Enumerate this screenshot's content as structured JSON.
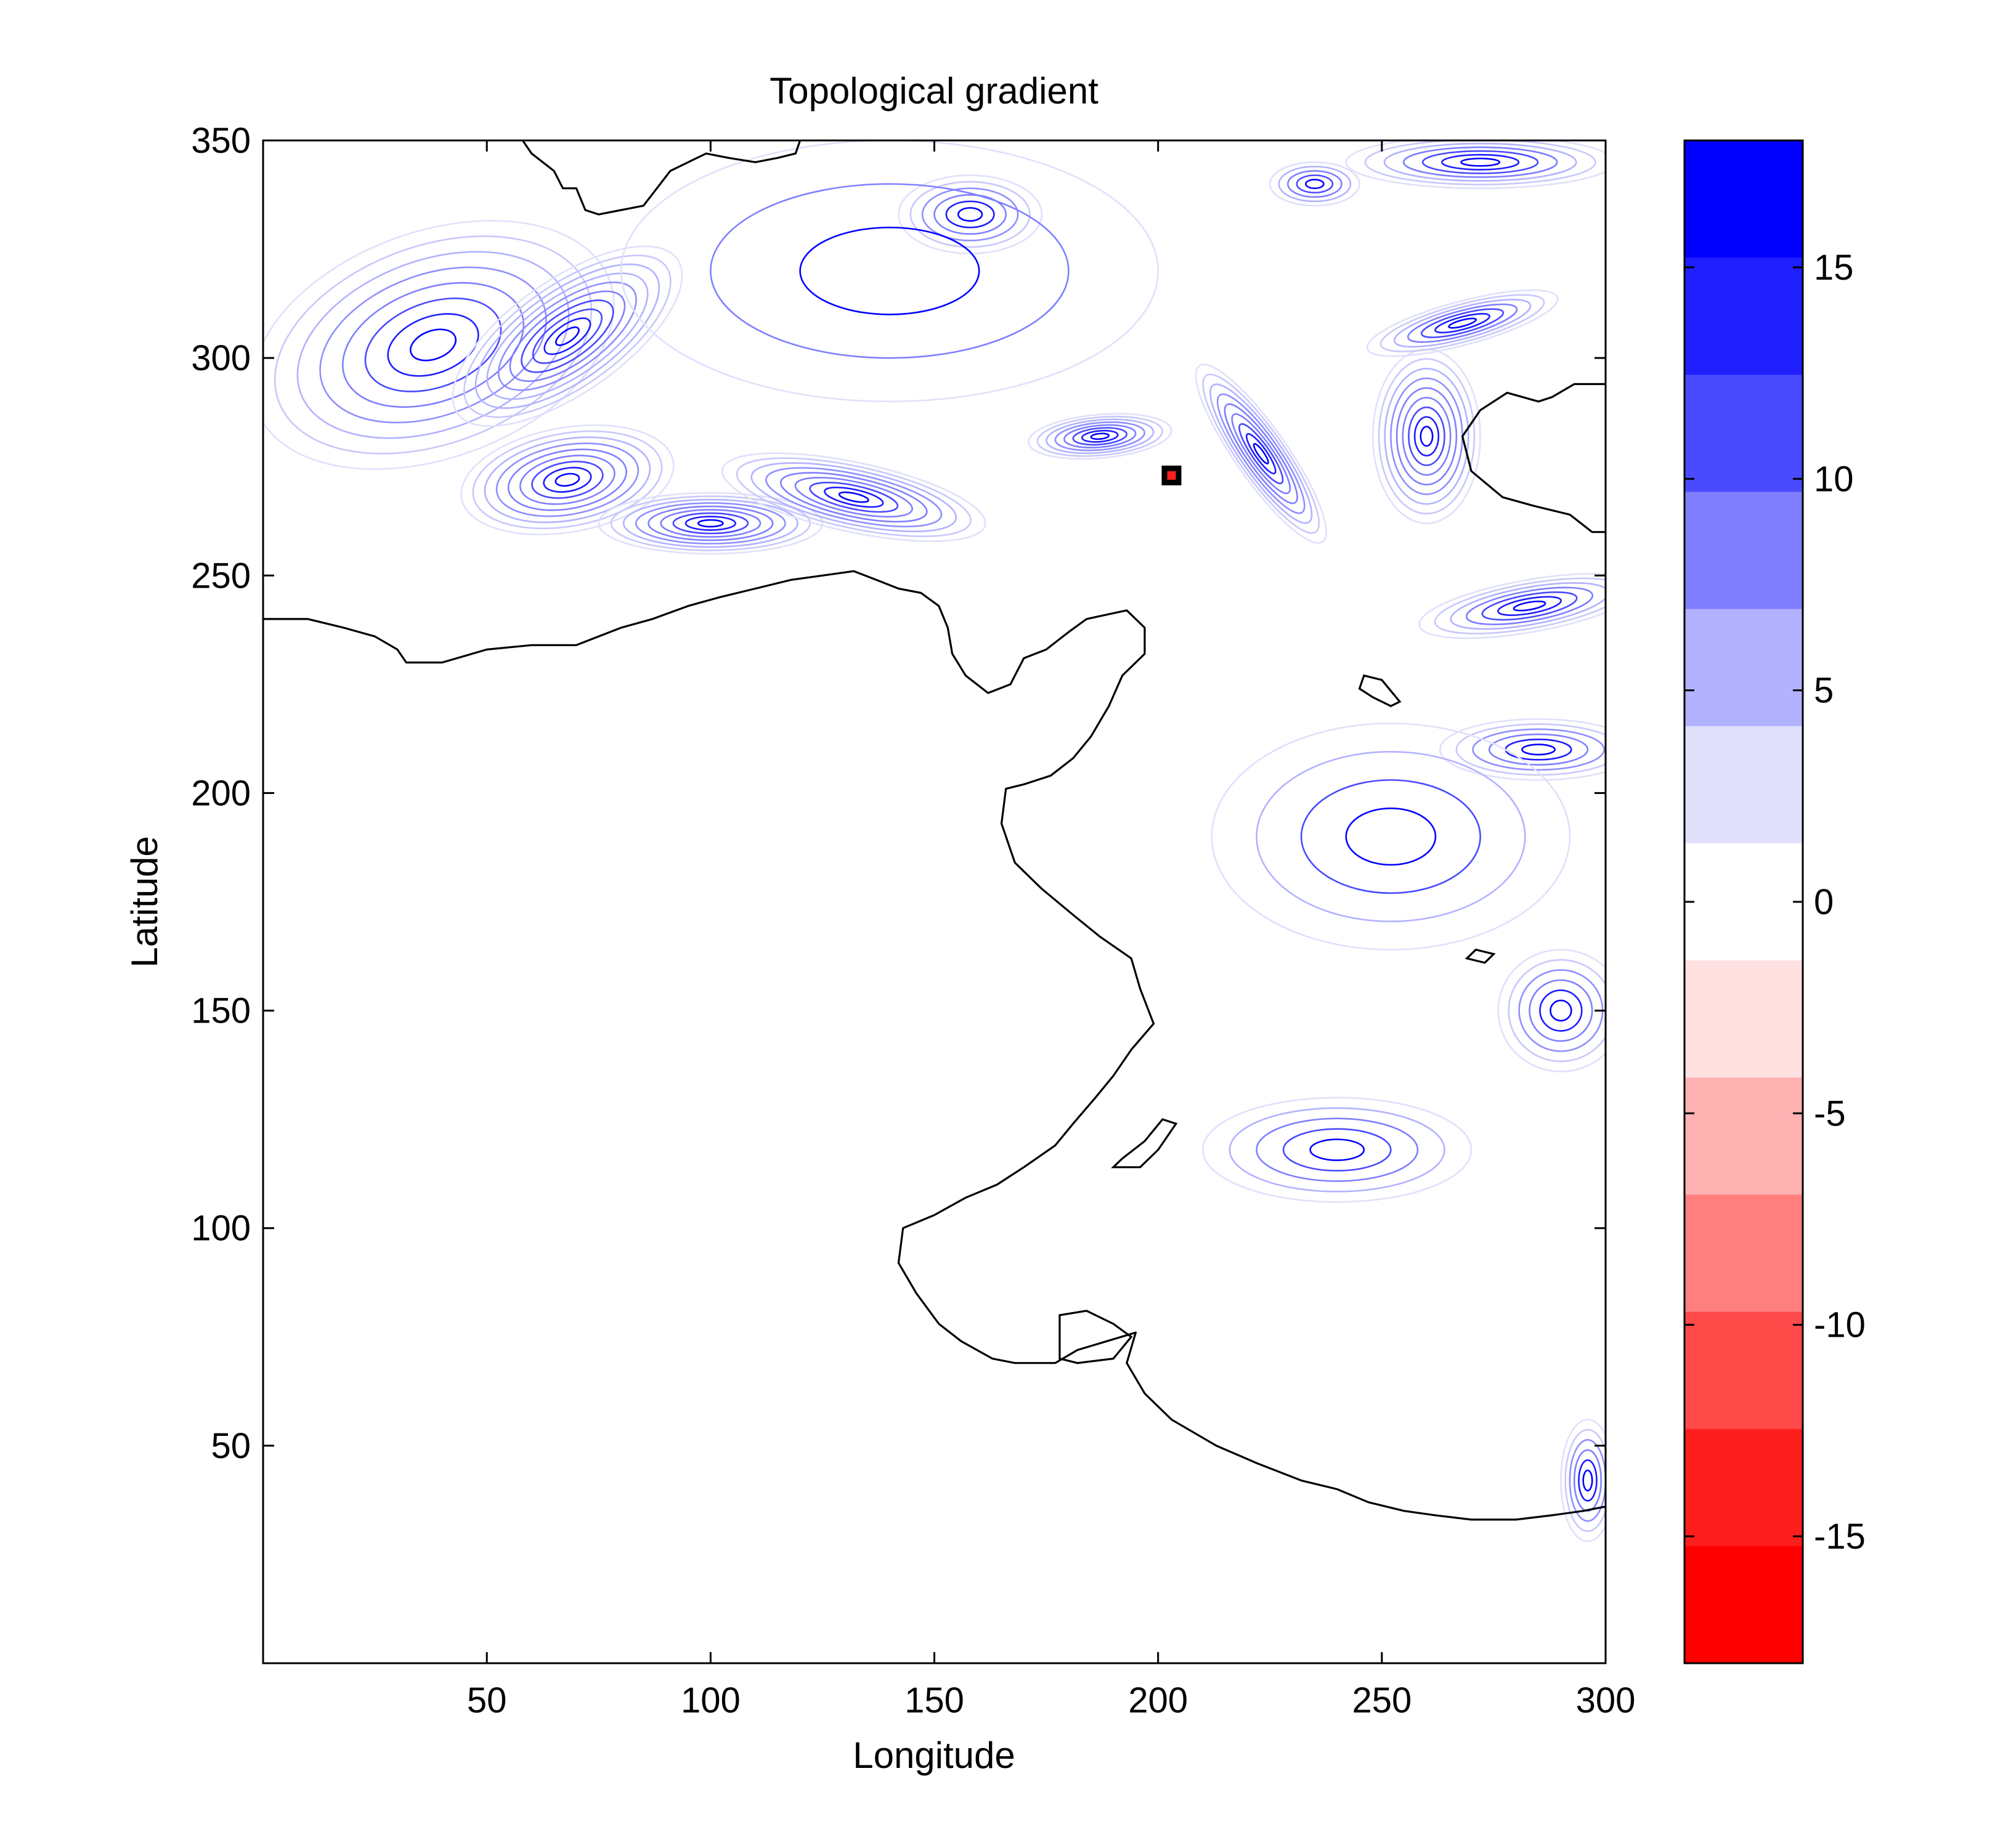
{
  "chart_data": {
    "type": "heatmap",
    "subtype": "contour map",
    "title": "Topological gradient",
    "xlabel": "Longitude",
    "ylabel": "Latitude",
    "xlim": [
      0,
      300
    ],
    "ylim": [
      0,
      350
    ],
    "xticks": [
      50,
      100,
      150,
      200,
      250,
      300
    ],
    "yticks": [
      50,
      100,
      150,
      200,
      250,
      300,
      350
    ],
    "colorbar": {
      "range": [
        -18,
        18
      ],
      "ticks": [
        15,
        10,
        5,
        0,
        -5,
        -10,
        -15
      ],
      "levels": [
        {
          "from": 15,
          "to": 18,
          "color": "#0000ff"
        },
        {
          "from": 12,
          "to": 15,
          "color": "#1e1eff"
        },
        {
          "from": 9,
          "to": 12,
          "color": "#4a4aff"
        },
        {
          "from": 6,
          "to": 9,
          "color": "#7f7fff"
        },
        {
          "from": 3,
          "to": 6,
          "color": "#b2b2ff"
        },
        {
          "from": 0,
          "to": 3,
          "color": "#e0e0fb"
        },
        {
          "from": -3,
          "to": 0,
          "color": "#ffffff"
        },
        {
          "from": -6,
          "to": -3,
          "color": "#ffe0e0"
        },
        {
          "from": -9,
          "to": -6,
          "color": "#ffb2b2"
        },
        {
          "from": -12,
          "to": -9,
          "color": "#ff7f7f"
        },
        {
          "from": -15,
          "to": -12,
          "color": "#ff4a4a"
        },
        {
          "from": -18,
          "to": -15,
          "color": "#ff1e1e"
        },
        {
          "from": -21,
          "to": -18,
          "color": "#ff0000"
        }
      ]
    },
    "coastline": [
      [
        0,
        240
      ],
      [
        10,
        240
      ],
      [
        18,
        238
      ],
      [
        25,
        236
      ],
      [
        30,
        233
      ],
      [
        32,
        230
      ],
      [
        40,
        230
      ],
      [
        50,
        233
      ],
      [
        60,
        234
      ],
      [
        70,
        234
      ],
      [
        80,
        238
      ],
      [
        87,
        240
      ],
      [
        95,
        243
      ],
      [
        102,
        245
      ],
      [
        110,
        247
      ],
      [
        118,
        249
      ],
      [
        125,
        250
      ],
      [
        132,
        251
      ],
      [
        137,
        249
      ],
      [
        142,
        247
      ],
      [
        147,
        246
      ],
      [
        151,
        243
      ],
      [
        153,
        238
      ],
      [
        154,
        232
      ],
      [
        157,
        227
      ],
      [
        162,
        223
      ],
      [
        167,
        225
      ],
      [
        170,
        231
      ],
      [
        175,
        233
      ],
      [
        180,
        237
      ],
      [
        184,
        240
      ],
      [
        193,
        242
      ],
      [
        197,
        238
      ],
      [
        197,
        232
      ],
      [
        192,
        227
      ],
      [
        189,
        220
      ],
      [
        185,
        213
      ],
      [
        181,
        208
      ],
      [
        176,
        204
      ],
      [
        170,
        202
      ],
      [
        166,
        201
      ],
      [
        165,
        193
      ],
      [
        168,
        184
      ],
      [
        174,
        178
      ],
      [
        181,
        172
      ],
      [
        187,
        167
      ],
      [
        194,
        162
      ],
      [
        196,
        155
      ],
      [
        199,
        147
      ],
      [
        194,
        141
      ],
      [
        190,
        135
      ],
      [
        186,
        130
      ],
      [
        181,
        124
      ],
      [
        177,
        119
      ],
      [
        170,
        114
      ],
      [
        164,
        110
      ],
      [
        157,
        107
      ],
      [
        150,
        103
      ],
      [
        143,
        100
      ],
      [
        142,
        92
      ],
      [
        146,
        85
      ],
      [
        151,
        78
      ],
      [
        156,
        74
      ],
      [
        163,
        70
      ],
      [
        168,
        69
      ],
      [
        177,
        69
      ],
      [
        182,
        72
      ],
      [
        195,
        76
      ],
      [
        193,
        69
      ],
      [
        197,
        62
      ],
      [
        203,
        56
      ],
      [
        213,
        50
      ],
      [
        222,
        46
      ],
      [
        232,
        42
      ],
      [
        240,
        40
      ],
      [
        247,
        37
      ],
      [
        255,
        35
      ],
      [
        262,
        34
      ],
      [
        270,
        33
      ],
      [
        280,
        33
      ],
      [
        288,
        34
      ],
      [
        295,
        35
      ],
      [
        300,
        36
      ]
    ],
    "coastline_north": [
      [
        58,
        350
      ],
      [
        60,
        347
      ],
      [
        65,
        343
      ],
      [
        67,
        339
      ],
      [
        70,
        339
      ],
      [
        72,
        334
      ],
      [
        75,
        333
      ],
      [
        80,
        334
      ],
      [
        85,
        335
      ],
      [
        88,
        339
      ],
      [
        91,
        343
      ],
      [
        95,
        345
      ],
      [
        99,
        347
      ],
      [
        104,
        346
      ],
      [
        110,
        345
      ],
      [
        115,
        346
      ],
      [
        119,
        347
      ],
      [
        120,
        350
      ]
    ],
    "coastline_east": [
      [
        300,
        294
      ],
      [
        293,
        294
      ],
      [
        288,
        291
      ],
      [
        285,
        290
      ],
      [
        278,
        292
      ],
      [
        272,
        288
      ],
      [
        268,
        282
      ],
      [
        270,
        274
      ],
      [
        277,
        268
      ],
      [
        284,
        266
      ],
      [
        292,
        264
      ],
      [
        297,
        260
      ],
      [
        300,
        260
      ]
    ],
    "islands": [
      [
        [
          245,
          224
        ],
        [
          248,
          222
        ],
        [
          252,
          220
        ],
        [
          254,
          221
        ],
        [
          250,
          226
        ],
        [
          246,
          227
        ],
        [
          245,
          224
        ]
      ],
      [
        [
          190,
          114
        ],
        [
          196,
          114
        ],
        [
          200,
          118
        ],
        [
          204,
          124
        ],
        [
          201,
          125
        ],
        [
          197,
          120
        ],
        [
          192,
          116
        ],
        [
          190,
          114
        ]
      ],
      [
        [
          178,
          70
        ],
        [
          182,
          69
        ],
        [
          190,
          70
        ],
        [
          194,
          75
        ],
        [
          190,
          78
        ],
        [
          184,
          81
        ],
        [
          178,
          80
        ],
        [
          178,
          70
        ]
      ],
      [
        [
          269,
          162
        ],
        [
          273,
          161
        ],
        [
          275,
          163
        ],
        [
          271,
          164
        ],
        [
          269,
          162
        ]
      ]
    ],
    "marker": {
      "x": 203,
      "y": 273
    }
  }
}
